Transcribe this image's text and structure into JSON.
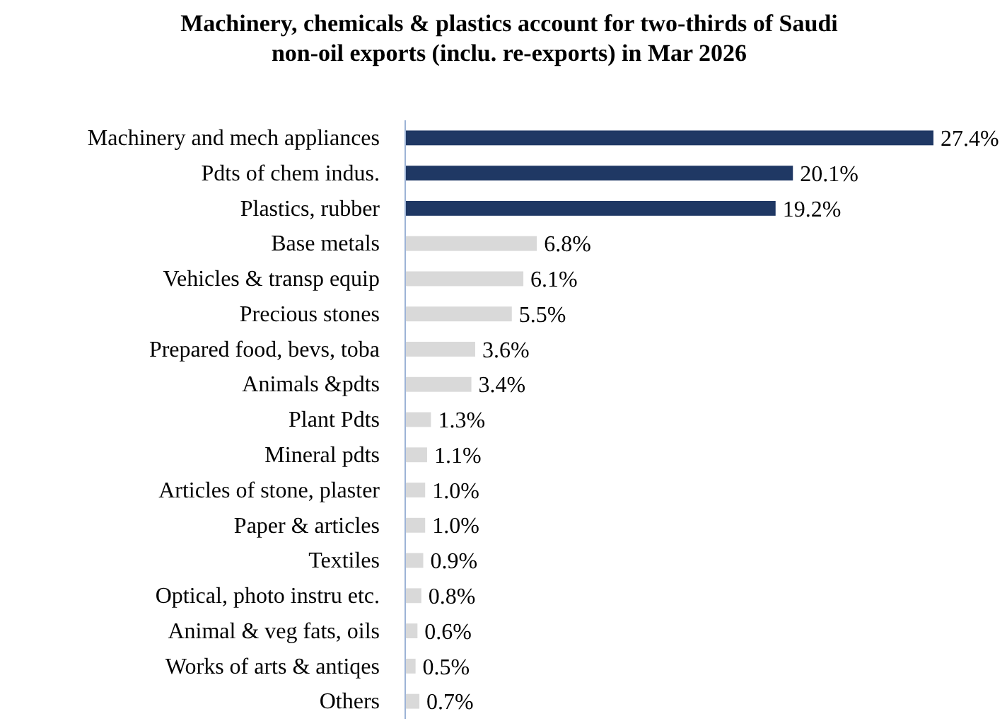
{
  "chart_data": {
    "type": "bar",
    "orientation": "horizontal",
    "title": "Machinery, chemicals & plastics account for two-thirds of Saudi non-oil exports (inclu. re-exports) in Mar 2026",
    "categories": [
      "Machinery and mech appliances",
      "Pdts of chem indus.",
      "Plastics, rubber",
      "Base metals",
      "Vehicles & transp equip",
      "Precious stones",
      "Prepared food, bevs, toba",
      "Animals &pdts",
      "Plant Pdts",
      "Mineral pdts",
      "Articles of stone, plaster",
      "Paper & articles",
      "Textiles",
      "Optical, photo instru etc.",
      "Animal & veg fats, oils",
      "Works of arts & antiqes",
      "Others"
    ],
    "values": [
      27.4,
      20.1,
      19.2,
      6.8,
      6.1,
      5.5,
      3.6,
      3.4,
      1.3,
      1.1,
      1.0,
      1.0,
      0.9,
      0.8,
      0.6,
      0.5,
      0.7
    ],
    "value_labels": [
      "27.4%",
      "20.1%",
      "19.2%",
      "6.8%",
      "6.1%",
      "5.5%",
      "3.6%",
      "3.4%",
      "1.3%",
      "1.1%",
      "1.0%",
      "1.0%",
      "0.9%",
      "0.8%",
      "0.6%",
      "0.5%",
      "0.7%"
    ],
    "colors": [
      "#1f3864",
      "#1f3864",
      "#1f3864",
      "#d9d9d9",
      "#d9d9d9",
      "#d9d9d9",
      "#d9d9d9",
      "#d9d9d9",
      "#d9d9d9",
      "#d9d9d9",
      "#d9d9d9",
      "#d9d9d9",
      "#d9d9d9",
      "#d9d9d9",
      "#d9d9d9",
      "#d9d9d9",
      "#d9d9d9"
    ]
  }
}
